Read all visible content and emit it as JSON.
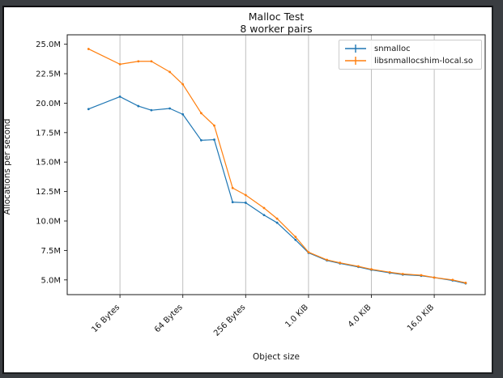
{
  "frame": {
    "background_color": "#3a3d41",
    "figure_background": "#ffffff"
  },
  "chart_data": {
    "type": "line",
    "title": "Malloc Test",
    "subtitle": "8 worker pairs",
    "xlabel": "Object size",
    "ylabel": "Allocations per second",
    "x_scale": "log2",
    "grid": "vertical-only",
    "grid_color": "#b8b8b8",
    "legend_position": "upper right",
    "x_ticks": [
      {
        "bytes": 16,
        "label": "16 Bytes"
      },
      {
        "bytes": 64,
        "label": "64 Bytes"
      },
      {
        "bytes": 256,
        "label": "256 Bytes"
      },
      {
        "bytes": 1024,
        "label": "1.0 KiB"
      },
      {
        "bytes": 4096,
        "label": "4.0 KiB"
      },
      {
        "bytes": 16384,
        "label": "16.0 KiB"
      }
    ],
    "y_ticks": [
      {
        "value": 5.0,
        "label": "5.0M"
      },
      {
        "value": 7.5,
        "label": "7.5M"
      },
      {
        "value": 10.0,
        "label": "10.0M"
      },
      {
        "value": 12.5,
        "label": "12.5M"
      },
      {
        "value": 15.0,
        "label": "15.0M"
      },
      {
        "value": 17.5,
        "label": "17.5M"
      },
      {
        "value": 20.0,
        "label": "20.0M"
      },
      {
        "value": 22.5,
        "label": "22.5M"
      },
      {
        "value": 25.0,
        "label": "25.0M"
      }
    ],
    "xlim_bytes": [
      5,
      50400
    ],
    "ylim_millions": [
      3.75,
      25.8
    ],
    "x_bytes": [
      8,
      16,
      24,
      32,
      48,
      64,
      96,
      128,
      192,
      256,
      384,
      512,
      768,
      1024,
      1536,
      2048,
      3072,
      4096,
      6144,
      8192,
      12288,
      16384,
      24576,
      32768
    ],
    "series": [
      {
        "name": "snmalloc",
        "color": "#1f77b4",
        "marker": "errorbar-point",
        "values_millions": [
          19.5,
          20.55,
          19.75,
          19.4,
          19.55,
          19.05,
          16.85,
          16.9,
          11.6,
          11.55,
          10.5,
          9.85,
          8.4,
          7.3,
          6.65,
          6.4,
          6.1,
          5.85,
          5.6,
          5.45,
          5.35,
          5.2,
          4.95,
          4.7
        ]
      },
      {
        "name": "libsnmallocshim-local.so",
        "color": "#ff7f0e",
        "marker": "errorbar-point",
        "values_millions": [
          24.6,
          23.3,
          23.55,
          23.55,
          22.65,
          21.6,
          19.15,
          18.1,
          12.8,
          12.2,
          11.1,
          10.2,
          8.65,
          7.35,
          6.7,
          6.45,
          6.15,
          5.9,
          5.65,
          5.5,
          5.4,
          5.2,
          5.0,
          4.75
        ]
      }
    ]
  }
}
